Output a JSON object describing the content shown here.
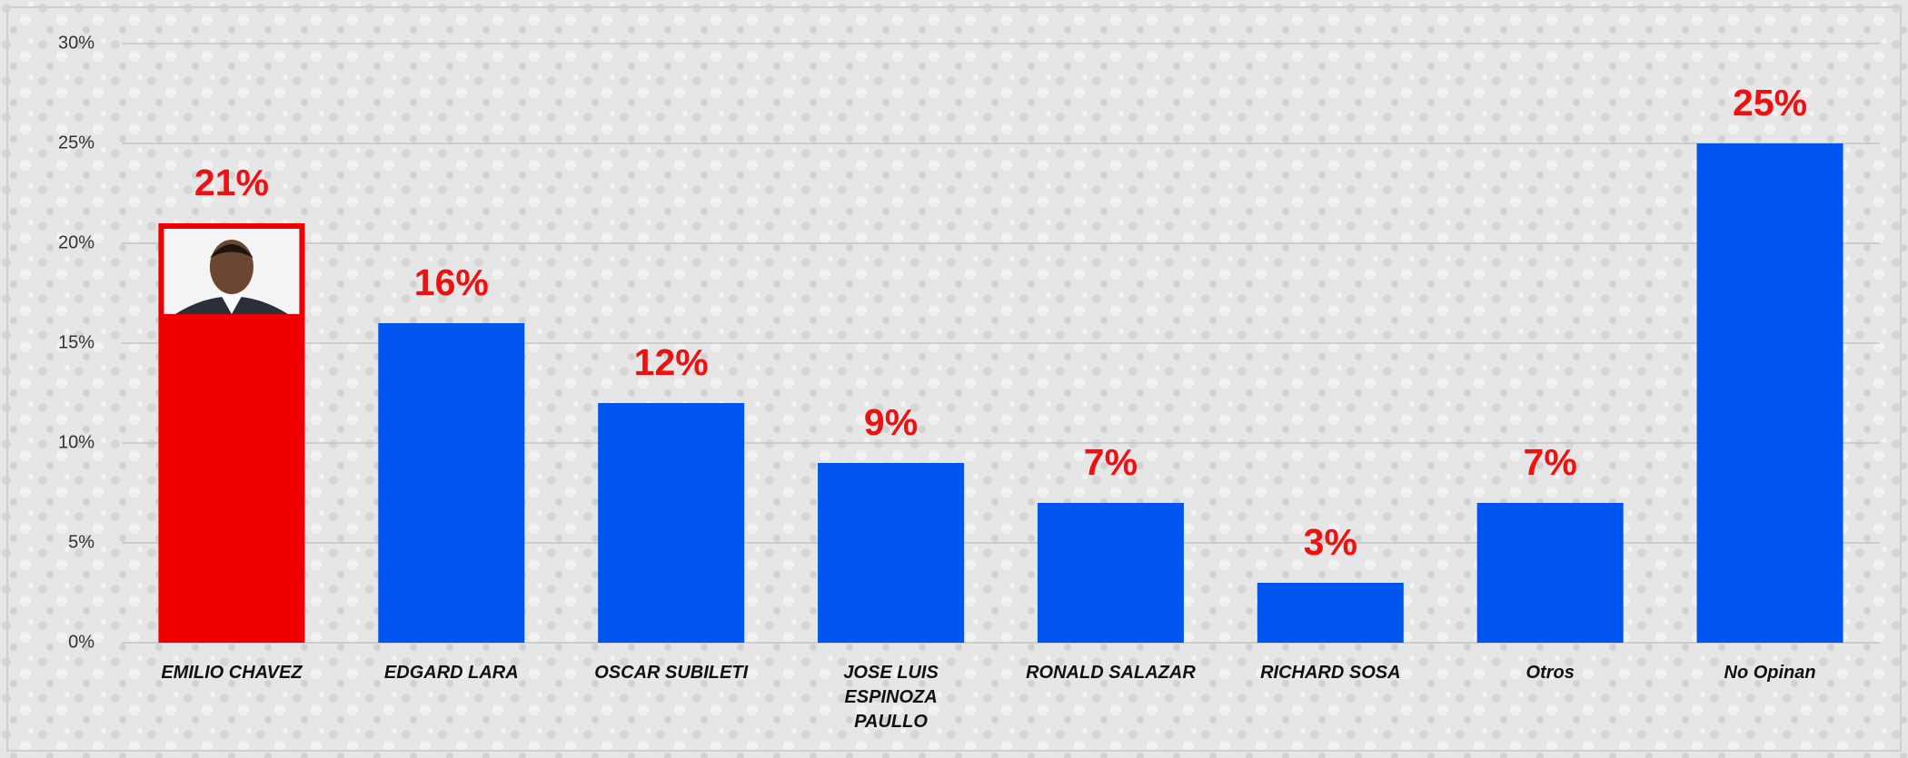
{
  "chart_data": {
    "type": "bar",
    "categories": [
      "EMILIO CHAVEZ",
      "EDGARD LARA",
      "OSCAR SUBILETI",
      "JOSE LUIS ESPINOZA PAULLO",
      "RONALD SALAZAR",
      "RICHARD SOSA",
      "Otros",
      "No Opinan"
    ],
    "values": [
      21,
      16,
      12,
      9,
      7,
      3,
      7,
      25
    ],
    "value_labels": [
      "21%",
      "16%",
      "12%",
      "9%",
      "7%",
      "3%",
      "7%",
      "25%"
    ],
    "colors": [
      "#ee0000",
      "#0055ee",
      "#0055ee",
      "#0055ee",
      "#0055ee",
      "#0055ee",
      "#0055ee",
      "#0055ee"
    ],
    "ylim": [
      0,
      30
    ],
    "yticks": [
      {
        "value": 0,
        "label": "0%"
      },
      {
        "value": 5,
        "label": "5%"
      },
      {
        "value": 10,
        "label": "10%"
      },
      {
        "value": 15,
        "label": "15%"
      },
      {
        "value": 20,
        "label": "20%"
      },
      {
        "value": 25,
        "label": "25%"
      },
      {
        "value": 30,
        "label": "30%"
      }
    ],
    "grid": true
  }
}
